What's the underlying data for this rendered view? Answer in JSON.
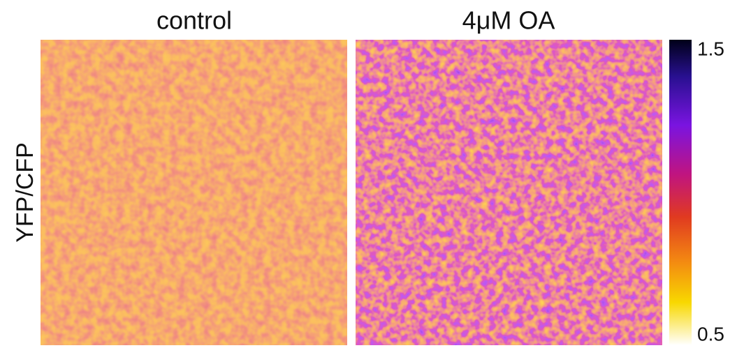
{
  "panels": [
    {
      "title": "control"
    },
    {
      "title": "4μM OA"
    }
  ],
  "y_label": "YFP/CFP",
  "colorbar": {
    "max": 1.5,
    "min": 0.5
  }
}
